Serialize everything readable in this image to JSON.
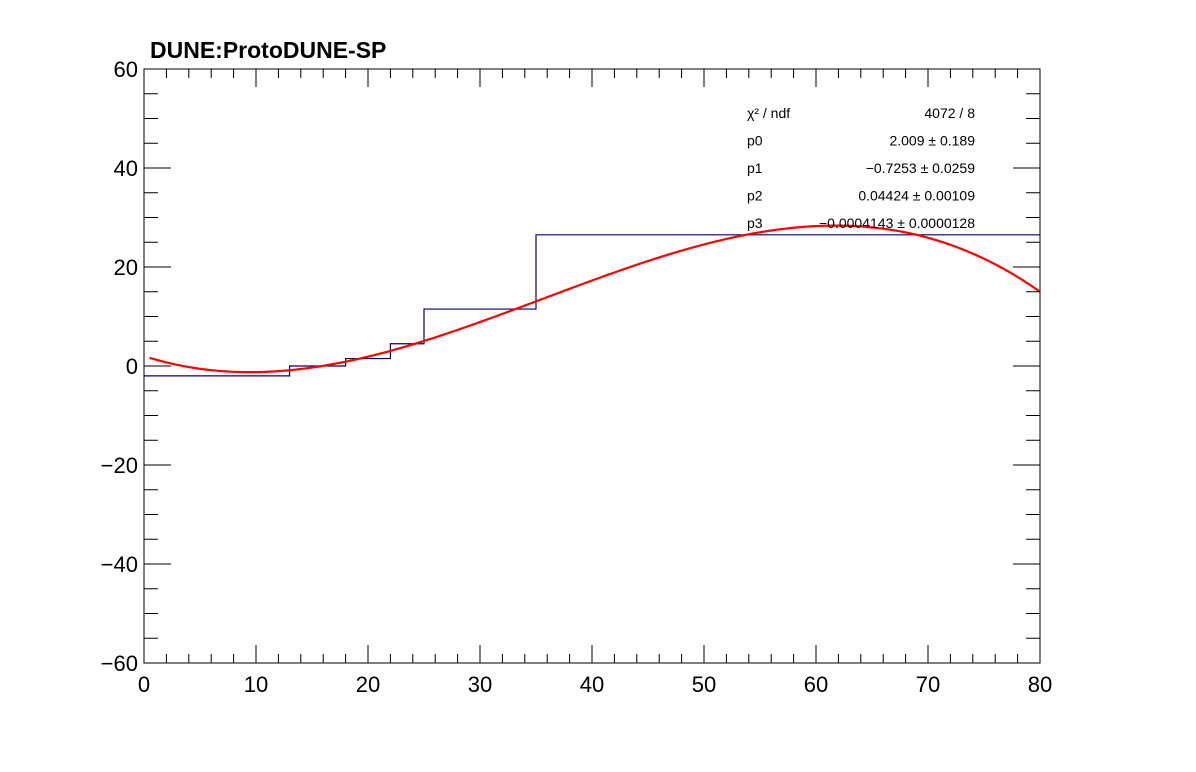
{
  "chart_data": {
    "type": "line",
    "title": "DUNE:ProtoDUNE-SP",
    "xlabel": "",
    "ylabel": "",
    "xlim": [
      0,
      80
    ],
    "ylim": [
      -60,
      60
    ],
    "x_ticks": [
      0,
      10,
      20,
      30,
      40,
      50,
      60,
      70,
      80
    ],
    "y_ticks": [
      -60,
      -40,
      -20,
      0,
      20,
      40,
      60
    ],
    "x_tick_labels": [
      "0",
      "10",
      "20",
      "30",
      "40",
      "50",
      "60",
      "70",
      "80"
    ],
    "y_tick_labels": [
      "−60",
      "−40",
      "−20",
      "0",
      "20",
      "40",
      "60"
    ],
    "grid": false,
    "series": [
      {
        "kind": "histogram",
        "color": "#00007f",
        "bins": [
          {
            "x0": 0,
            "x1": 13,
            "y": -2
          },
          {
            "x0": 13,
            "x1": 18,
            "y": 0
          },
          {
            "x0": 18,
            "x1": 22,
            "y": 1.5
          },
          {
            "x0": 22,
            "x1": 25,
            "y": 4.5
          },
          {
            "x0": 25,
            "x1": 35,
            "y": 11.5
          },
          {
            "x0": 35,
            "x1": 80,
            "y": 26.5
          }
        ]
      },
      {
        "kind": "fit",
        "color": "#ff0000",
        "function": "pol3",
        "x_range": [
          0.5,
          80
        ],
        "params": [
          2.009,
          -0.7253,
          0.04424,
          -0.0004143
        ]
      }
    ],
    "stats_box": {
      "rows": [
        {
          "label": "χ² / ndf",
          "value": "4072 / 8"
        },
        {
          "label": "p0",
          "value": "2.009  ± 0.189"
        },
        {
          "label": "p1",
          "value": "−0.7253  ± 0.0259"
        },
        {
          "label": "p2",
          "value": "0.04424  ± 0.00109"
        },
        {
          "label": "p3",
          "value": "−0.0004143  ± 0.0000128"
        }
      ]
    }
  }
}
